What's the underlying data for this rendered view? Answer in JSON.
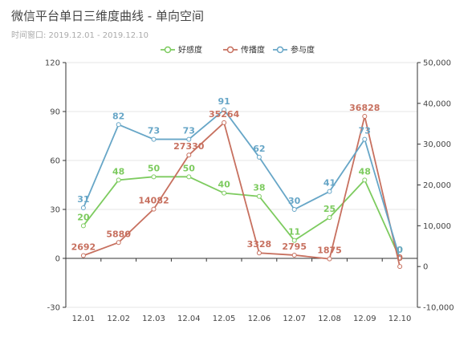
{
  "title": "微信平台单日三维度曲线 - 单向空间",
  "subtitle": "时间窗口: 2019.12.01 - 2019.12.10",
  "chart_data": {
    "type": "line",
    "categories": [
      "12.01",
      "12.02",
      "12.03",
      "12.04",
      "12.05",
      "12.06",
      "12.07",
      "12.08",
      "12.09",
      "12.10"
    ],
    "y_left": {
      "min": -30,
      "max": 120,
      "ticks": [
        -30,
        0,
        30,
        60,
        90,
        120
      ]
    },
    "y_right": {
      "min": -10000,
      "max": 50000,
      "ticks": [
        -10000,
        0,
        10000,
        20000,
        30000,
        40000,
        50000
      ],
      "tick_labels": [
        "-10,000",
        "0",
        "10,000",
        "20,000",
        "30,000",
        "40,000",
        "50,000"
      ]
    },
    "grid": true,
    "legend_position": "top-center",
    "series": [
      {
        "name": "好感度",
        "color": "#7dcb5f",
        "axis": "left",
        "values": [
          20,
          48,
          50,
          50,
          40,
          38,
          11,
          25,
          48,
          0
        ],
        "labels": [
          "20",
          "48",
          "50",
          "50",
          "40",
          "38",
          "11",
          "25",
          "48",
          "0"
        ]
      },
      {
        "name": "传播度",
        "color": "#c7705f",
        "axis": "right",
        "values": [
          2692,
          5880,
          14082,
          27330,
          35264,
          3328,
          2795,
          1875,
          36828,
          0
        ],
        "labels": [
          "2692",
          "5880",
          "14082",
          "27330",
          "35264",
          "3328",
          "2795",
          "1875",
          "36828",
          "0"
        ]
      },
      {
        "name": "参与度",
        "color": "#67a6c7",
        "axis": "left",
        "values": [
          31,
          82,
          73,
          73,
          91,
          62,
          30,
          41,
          73,
          0
        ],
        "labels": [
          "31",
          "82",
          "73",
          "73",
          "91",
          "62",
          "30",
          "41",
          "73",
          "0"
        ]
      }
    ]
  }
}
